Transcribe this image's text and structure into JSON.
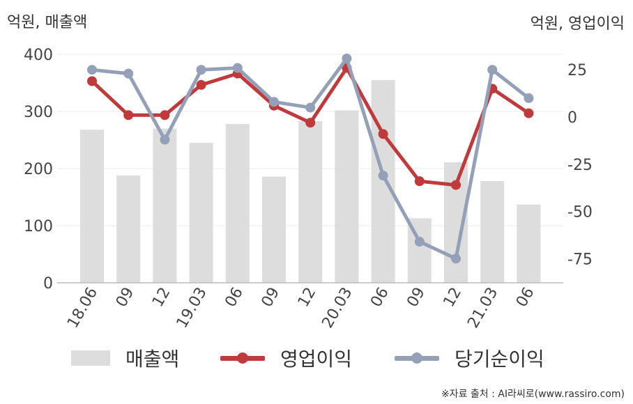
{
  "units": {
    "left": "억원, 매출액",
    "right": "억원, 영업이익"
  },
  "chart_data": {
    "type": "bar+line",
    "categories": [
      "18.06",
      "09",
      "12",
      "19.03",
      "06",
      "09",
      "12",
      "20.03",
      "06",
      "09",
      "12",
      "21.03",
      "06"
    ],
    "left_axis": {
      "ylim": [
        0,
        400
      ],
      "ticks": [
        0,
        100,
        200,
        300,
        400
      ]
    },
    "right_axis": {
      "ylim": [
        -87.8,
        33.2
      ],
      "ticks": [
        25,
        0,
        -25,
        -50,
        -75
      ]
    },
    "series": [
      {
        "name": "매출액",
        "type": "bar",
        "axis": "left",
        "color": "#dddddd",
        "values": [
          268,
          188,
          270,
          245,
          278,
          186,
          283,
          302,
          355,
          113,
          211,
          178,
          137
        ]
      },
      {
        "name": "영업이익",
        "type": "line",
        "axis": "right",
        "color": "#c0393b",
        "values": [
          19,
          1,
          1,
          17,
          23,
          6,
          -3,
          26,
          -9,
          -34,
          -36,
          15,
          2
        ]
      },
      {
        "name": "당기순이익",
        "type": "line",
        "axis": "right",
        "color": "#93a0b8",
        "values": [
          25,
          23,
          -12,
          25,
          26,
          8,
          5,
          31,
          -31,
          -66,
          -75,
          25,
          10
        ]
      }
    ],
    "grid": true,
    "legend_position": "bottom"
  },
  "source": "※자료 출처 : AI라씨로(www.rassiro.com)"
}
